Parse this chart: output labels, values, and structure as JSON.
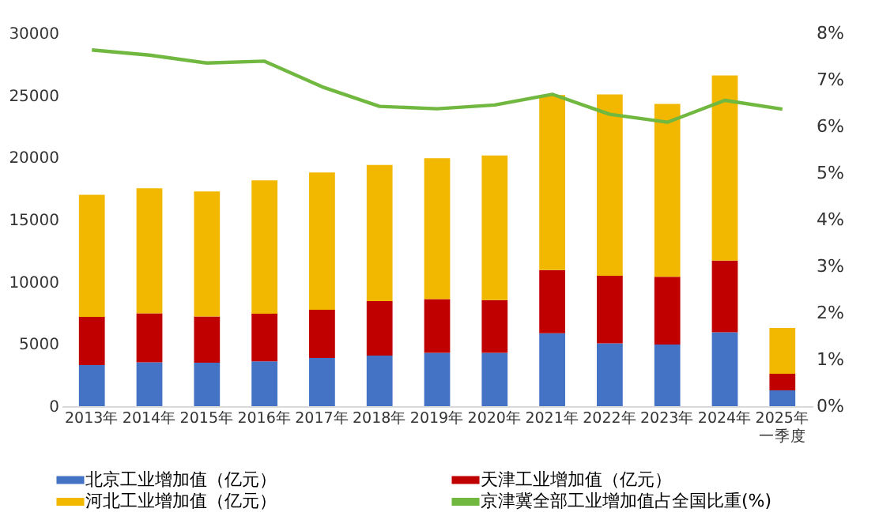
{
  "chart_data": {
    "type": "bar",
    "stacked": true,
    "categories": [
      "2013年",
      "2014年",
      "2015年",
      "2016年",
      "2017年",
      "2018年",
      "2019年",
      "2020年",
      "2021年",
      "2022年",
      "2023年",
      "2024年",
      "2025年一季度"
    ],
    "series": [
      {
        "name": "北京工业增加值（亿元）",
        "color": "#4472c4",
        "values": [
          3310,
          3530,
          3490,
          3610,
          3870,
          4070,
          4290,
          4290,
          5860,
          5050,
          4960,
          5940,
          1270
        ]
      },
      {
        "name": "天津工业增加值（亿元）",
        "color": "#c00000",
        "values": [
          3870,
          3940,
          3730,
          3820,
          3890,
          4380,
          4330,
          4240,
          5090,
          5440,
          5440,
          5770,
          1330
        ]
      },
      {
        "name": "河北工业增加值（亿元）",
        "color": "#f2b800",
        "values": [
          9820,
          10060,
          10050,
          10730,
          11040,
          10950,
          11320,
          11630,
          14080,
          14590,
          13910,
          14890,
          3690
        ]
      },
      {
        "name": "京津冀全部工业增加值占全国比重(%)",
        "color": "#70b83f",
        "type": "line",
        "axis": "y2",
        "values": [
          7.64,
          7.53,
          7.36,
          7.4,
          6.85,
          6.43,
          6.38,
          6.46,
          6.69,
          6.26,
          6.09,
          6.56,
          6.37
        ]
      }
    ],
    "ylim": [
      0,
      30000
    ],
    "yticks": [
      0,
      5000,
      10000,
      15000,
      20000,
      25000,
      30000
    ],
    "y2lim": [
      0,
      8
    ],
    "y2ticks": [
      {
        "value": 0,
        "label": "0%"
      },
      {
        "value": 1,
        "label": "1%"
      },
      {
        "value": 2,
        "label": "2%"
      },
      {
        "value": 3,
        "label": "3%"
      },
      {
        "value": 4,
        "label": "4%"
      },
      {
        "value": 5,
        "label": "5%"
      },
      {
        "value": 6,
        "label": "6%"
      },
      {
        "value": 7,
        "label": "7%"
      },
      {
        "value": 8,
        "label": "8%"
      }
    ],
    "grid": false,
    "legend": "bottom",
    "marker": "none",
    "line_style": "solid"
  }
}
